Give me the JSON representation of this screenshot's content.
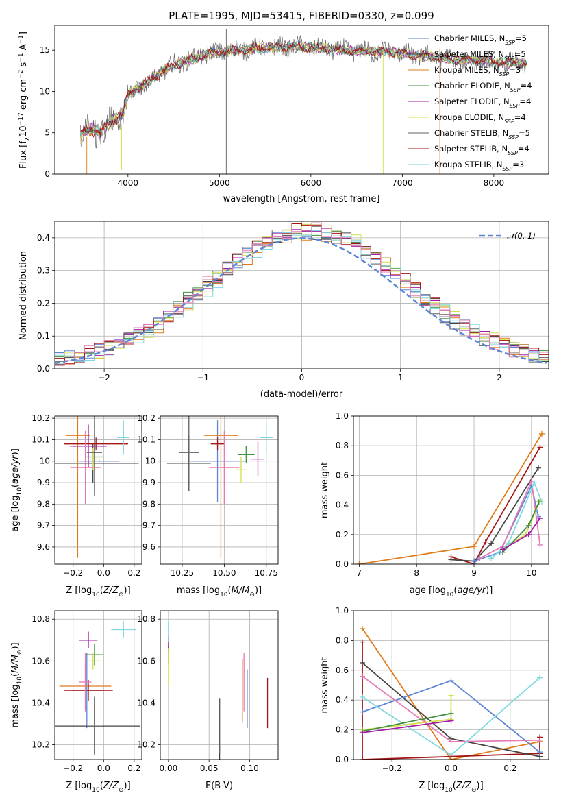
{
  "figure": {
    "title": "PLATE=1995, MJD=53415, FIBERID=0330, z=0.099"
  },
  "colors": {
    "Chabrier MILES": "#5b86d6",
    "Salpeter MILES": "#444444",
    "Kroupa MILES": "#e07b1a",
    "Chabrier ELODIE": "#3f8f3f",
    "Salpeter ELODIE": "#a61aa6",
    "Kroupa ELODIE": "#d4e04a",
    "Chabrier STELIB": "#606060",
    "Salpeter STELIB": "#a61515",
    "Kroupa STELIB": "#7fd8df",
    "pink": "#e67ab4",
    "normal": "#5b86d6"
  },
  "chart_data": [
    {
      "type": "line",
      "panel": "spectrum",
      "title": "PLATE=1995, MJD=53415, FIBERID=0330, z=0.099",
      "xlabel": "wavelength [Angstrom, rest frame]",
      "ylabel": "Flux [fλ10⁻¹⁷ erg cm⁻² s⁻¹ A⁻¹]",
      "xlim": [
        3200,
        8600
      ],
      "ylim": [
        0,
        18
      ],
      "xticks": [
        4000,
        5000,
        6000,
        7000,
        8000
      ],
      "yticks": [
        0,
        5,
        10,
        15
      ],
      "legend_position": "right",
      "legend": [
        {
          "name": "Chabrier MILES",
          "nssp": "5",
          "color": "#5b86d6"
        },
        {
          "name": "Salpeter MILES",
          "nssp": "5",
          "color": "#444444"
        },
        {
          "name": "Kroupa MILES",
          "nssp": "3",
          "color": "#e07b1a"
        },
        {
          "name": "Chabrier ELODIE",
          "nssp": "4",
          "color": "#3f8f3f"
        },
        {
          "name": "Salpeter ELODIE",
          "nssp": "4",
          "color": "#a61aa6"
        },
        {
          "name": "Kroupa ELODIE",
          "nssp": "4",
          "color": "#d4e04a"
        },
        {
          "name": "Chabrier STELIB",
          "nssp": "5",
          "color": "#606060"
        },
        {
          "name": "Salpeter STELIB",
          "nssp": "4",
          "color": "#a61515"
        },
        {
          "name": "Kroupa STELIB",
          "nssp": "3",
          "color": "#7fd8df"
        }
      ],
      "continuum": {
        "x": [
          3480,
          3520,
          3600,
          3700,
          3800,
          3900,
          3950,
          4000,
          4100,
          4200,
          4300,
          4400,
          4500,
          4600,
          4700,
          4800,
          4900,
          5000,
          5100,
          5200,
          5300,
          5400,
          5500,
          5600,
          5700,
          5800,
          5900,
          6000,
          6100,
          6200,
          6300,
          6400,
          6500,
          6600,
          6700,
          6800,
          6900,
          7000,
          7100,
          7200,
          7300,
          7400,
          7500,
          7600,
          7700,
          7800,
          7900,
          8000,
          8100,
          8200,
          8300,
          8350
        ],
        "y": [
          4.6,
          5.2,
          5.5,
          5.0,
          6.2,
          7.0,
          7.5,
          9.6,
          10.4,
          11.0,
          11.8,
          12.6,
          13.2,
          13.6,
          13.9,
          14.3,
          14.6,
          14.8,
          14.9,
          15.0,
          15.1,
          15.2,
          15.3,
          15.3,
          15.4,
          15.4,
          15.4,
          15.3,
          15.2,
          15.1,
          15.0,
          15.0,
          14.9,
          14.9,
          14.8,
          14.8,
          14.8,
          14.6,
          14.5,
          14.3,
          14.3,
          14.1,
          14.0,
          13.9,
          13.8,
          13.8,
          13.7,
          13.6,
          13.5,
          13.5,
          13.4,
          13.4
        ]
      },
      "spikes": [
        {
          "x": 3780,
          "y": [
            4.0,
            17.4
          ],
          "color": "#606060"
        },
        {
          "x": 5075,
          "y": [
            0.0,
            17.6
          ],
          "color": "#606060"
        },
        {
          "x": 6790,
          "y": [
            0.0,
            15.0
          ],
          "color": "#d4e04a"
        },
        {
          "x": 7410,
          "y": [
            0.0,
            15.2
          ],
          "color": "#e07b1a"
        },
        {
          "x": 3550,
          "y": [
            0.0,
            4.5
          ],
          "color": "#e07b1a"
        },
        {
          "x": 3930,
          "y": [
            0.5,
            6.0
          ],
          "color": "#d4e04a"
        }
      ]
    },
    {
      "type": "line",
      "panel": "residuals",
      "xlabel": "(data-model)/error",
      "ylabel": "Normed distribution",
      "xlim": [
        -2.5,
        2.5
      ],
      "ylim": [
        0,
        0.45
      ],
      "xticks": [
        -2,
        -1,
        0,
        1,
        2
      ],
      "xticklabels": [
        "−2",
        "−1",
        "0",
        "1",
        "2"
      ],
      "yticks": [
        0.0,
        0.1,
        0.2,
        0.3,
        0.4
      ],
      "yticklabels": [
        "0.0",
        "0.1",
        "0.2",
        "0.3",
        "0.4"
      ],
      "legend": "𝒩(0, 1)",
      "legend_position": "top-right",
      "series_colors": [
        "#5b86d6",
        "#444444",
        "#e07b1a",
        "#3f8f3f",
        "#a61aa6",
        "#d4e04a",
        "#606060",
        "#a61515",
        "#7fd8df",
        "#e67ab4"
      ],
      "normal_curve": {
        "mean": 0,
        "sigma": 1,
        "color": "#5b86d6"
      }
    },
    {
      "type": "scatter",
      "panel": "Z-age",
      "xlabel": "Z [log₁₀(Z/Z⊙)]",
      "ylabel": "age  [log₁₀(age/yr)]",
      "xlim": [
        -0.32,
        0.25
      ],
      "ylim": [
        9.52,
        10.21
      ],
      "xticks": [
        -0.2,
        0.0,
        0.2
      ],
      "xticklabels": [
        "−0.2",
        "0.0",
        "0.2"
      ],
      "yticks": [
        9.6,
        9.7,
        9.8,
        9.9,
        10.0,
        10.1,
        10.2
      ],
      "points": [
        {
          "x": -0.03,
          "y": 10.0,
          "xerr": 0.13,
          "yerr": 0.005,
          "color": "#5b86d6"
        },
        {
          "x": -0.07,
          "y": 9.99,
          "xerr": 0.3,
          "yerr": 0.09,
          "color": "#444444"
        },
        {
          "x": -0.17,
          "y": 10.12,
          "xerr": 0.08,
          "yerr": 0.57,
          "color": "#e07b1a"
        },
        {
          "x": -0.06,
          "y": 10.02,
          "xerr": 0.06,
          "yerr": 0.06,
          "color": "#3f8f3f"
        },
        {
          "x": -0.1,
          "y": 10.07,
          "xerr": 0.12,
          "yerr": 0.1,
          "color": "#a61aa6"
        },
        {
          "x": -0.07,
          "y": 10.01,
          "xerr": 0.05,
          "yerr": 0.05,
          "color": "#d4e04a"
        },
        {
          "x": -0.06,
          "y": 10.04,
          "xerr": 0.05,
          "yerr": 0.2,
          "color": "#606060"
        },
        {
          "x": -0.05,
          "y": 10.08,
          "xerr": 0.21,
          "yerr": 0.03,
          "color": "#a61515"
        },
        {
          "x": 0.13,
          "y": 10.11,
          "xerr": 0.04,
          "yerr": 0.08,
          "color": "#7fd8df"
        },
        {
          "x": -0.12,
          "y": 9.97,
          "xerr": 0.1,
          "yerr": 0.17,
          "color": "#e67ab4"
        }
      ]
    },
    {
      "type": "scatter",
      "panel": "mass-age",
      "xlabel": "mass [log₁₀(M/M⊙)]",
      "ylabel": "",
      "xlim": [
        10.12,
        10.82
      ],
      "ylim": [
        9.52,
        10.21
      ],
      "xticks": [
        10.25,
        10.5,
        10.75
      ],
      "xticklabels": [
        "10.25",
        "10.50",
        "10.75"
      ],
      "yticks": [
        9.6,
        9.7,
        9.8,
        9.9,
        10.0,
        10.1,
        10.2
      ],
      "points": [
        {
          "x": 10.46,
          "y": 10.0,
          "xerr": 0.16,
          "yerr": 0.19,
          "color": "#5b86d6"
        },
        {
          "x": 10.29,
          "y": 9.99,
          "xerr": 0.13,
          "yerr": 0.13,
          "color": "#444444"
        },
        {
          "x": 10.48,
          "y": 10.12,
          "xerr": 0.1,
          "yerr": 0.57,
          "color": "#e07b1a"
        },
        {
          "x": 10.63,
          "y": 10.03,
          "xerr": 0.05,
          "yerr": 0.04,
          "color": "#3f8f3f"
        },
        {
          "x": 10.7,
          "y": 10.01,
          "xerr": 0.04,
          "yerr": 0.08,
          "color": "#a61aa6"
        },
        {
          "x": 10.6,
          "y": 9.96,
          "xerr": 0.03,
          "yerr": 0.06,
          "color": "#d4e04a"
        },
        {
          "x": 10.29,
          "y": 10.04,
          "xerr": 0.06,
          "yerr": 0.18,
          "color": "#606060"
        },
        {
          "x": 10.46,
          "y": 10.08,
          "xerr": 0.04,
          "yerr": 0.03,
          "color": "#a61515"
        },
        {
          "x": 10.75,
          "y": 10.11,
          "xerr": 0.04,
          "yerr": 0.07,
          "color": "#7fd8df"
        },
        {
          "x": 10.5,
          "y": 9.97,
          "xerr": 0.09,
          "yerr": 0.17,
          "color": "#e67ab4"
        }
      ]
    },
    {
      "type": "line",
      "panel": "age-weight",
      "xlabel": "age  [log₁₀(age/yr)]",
      "ylabel": "mass weight",
      "xlim": [
        6.9,
        10.3
      ],
      "ylim": [
        0,
        1.0
      ],
      "xticks": [
        7,
        8,
        9,
        10
      ],
      "yticks": [
        0.0,
        0.2,
        0.4,
        0.6,
        0.8,
        1.0
      ],
      "yticklabels": [
        "0.0",
        "0.2",
        "0.4",
        "0.6",
        "0.8",
        "1.0"
      ],
      "series": [
        {
          "color": "#e07b1a",
          "x": [
            7.0,
            9.0,
            10.18
          ],
          "y": [
            0.0,
            0.12,
            0.88
          ]
        },
        {
          "color": "#a61515",
          "x": [
            8.6,
            9.0,
            9.2,
            10.15
          ],
          "y": [
            0.05,
            0.0,
            0.15,
            0.79
          ]
        },
        {
          "color": "#444444",
          "x": [
            8.6,
            9.0,
            9.3,
            10.12
          ],
          "y": [
            0.03,
            0.02,
            0.14,
            0.65
          ]
        },
        {
          "color": "#5b86d6",
          "x": [
            9.0,
            9.45,
            10.0,
            10.12
          ],
          "y": [
            0.02,
            0.08,
            0.53,
            0.32
          ]
        },
        {
          "color": "#e67ab4",
          "x": [
            9.1,
            9.5,
            10.0,
            10.15
          ],
          "y": [
            0.04,
            0.12,
            0.56,
            0.13
          ]
        },
        {
          "color": "#7fd8df",
          "x": [
            9.3,
            9.6,
            10.05,
            10.18
          ],
          "y": [
            0.04,
            0.14,
            0.55,
            0.42
          ]
        },
        {
          "color": "#d4e04a",
          "x": [
            9.5,
            9.9,
            10.15
          ],
          "y": [
            0.1,
            0.2,
            0.43
          ]
        },
        {
          "color": "#3f8f3f",
          "x": [
            9.5,
            9.95,
            10.13
          ],
          "y": [
            0.08,
            0.26,
            0.42
          ]
        },
        {
          "color": "#a61aa6",
          "x": [
            9.5,
            9.95,
            10.15
          ],
          "y": [
            0.1,
            0.2,
            0.31
          ]
        }
      ]
    },
    {
      "type": "scatter",
      "panel": "Z-mass",
      "xlabel": "Z [log₁₀(Z/Z⊙)]",
      "ylabel": "mass [log₁₀(M/M⊙)]",
      "xlim": [
        -0.32,
        0.25
      ],
      "ylim": [
        10.13,
        10.84
      ],
      "xticks": [
        -0.2,
        0.0,
        0.2
      ],
      "xticklabels": [
        "−0.2",
        "0.0",
        "0.2"
      ],
      "yticks": [
        10.2,
        10.4,
        10.6,
        10.8
      ],
      "yticklabels": [
        "10.2",
        "10.4",
        "10.6",
        "10.8"
      ],
      "points": [
        {
          "x": -0.11,
          "y": 10.46,
          "xerr": 0.1,
          "yerr": 0.18,
          "color": "#5b86d6"
        },
        {
          "x": -0.06,
          "y": 10.29,
          "xerr": 0.3,
          "yerr": 0.13,
          "color": "#444444"
        },
        {
          "x": -0.12,
          "y": 10.48,
          "xerr": 0.17,
          "yerr": 0.11,
          "color": "#e07b1a"
        },
        {
          "x": -0.06,
          "y": 10.63,
          "xerr": 0.06,
          "yerr": 0.05,
          "color": "#3f8f3f"
        },
        {
          "x": -0.1,
          "y": 10.7,
          "xerr": 0.06,
          "yerr": 0.04,
          "color": "#a61aa6"
        },
        {
          "x": -0.07,
          "y": 10.6,
          "xerr": 0.05,
          "yerr": 0.04,
          "color": "#d4e04a"
        },
        {
          "x": -0.06,
          "y": 10.29,
          "xerr": 0.05,
          "yerr": 0.14,
          "color": "#606060"
        },
        {
          "x": -0.1,
          "y": 10.46,
          "xerr": 0.16,
          "yerr": 0.05,
          "color": "#a61515"
        },
        {
          "x": 0.13,
          "y": 10.75,
          "xerr": 0.08,
          "yerr": 0.04,
          "color": "#7fd8df"
        },
        {
          "x": -0.12,
          "y": 10.5,
          "xerr": 0.04,
          "yerr": 0.14,
          "color": "#e67ab4"
        }
      ]
    },
    {
      "type": "scatter",
      "panel": "EBV-mass",
      "xlabel": "E(B-V)",
      "ylabel": "",
      "xlim": [
        -0.01,
        0.135
      ],
      "ylim": [
        10.13,
        10.84
      ],
      "xticks": [
        0.0,
        0.05,
        0.1
      ],
      "xticklabels": [
        "0.00",
        "0.05",
        "0.10"
      ],
      "yticks": [
        10.2,
        10.4,
        10.6,
        10.8
      ],
      "yticklabels": [
        "10.2",
        "10.4",
        "10.6",
        "10.8"
      ],
      "points": [
        {
          "x": 0.097,
          "y": 10.42,
          "yerr": 0.14,
          "color": "#5b86d6"
        },
        {
          "x": 0.063,
          "y": 10.27,
          "yerr": 0.15,
          "color": "#444444"
        },
        {
          "x": 0.091,
          "y": 10.46,
          "yerr": 0.15,
          "color": "#e07b1a"
        },
        {
          "x": 0.0,
          "y": 10.63,
          "yerr": 0.04,
          "color": "#3f8f3f"
        },
        {
          "x": 0.0,
          "y": 10.68,
          "yerr": 0.04,
          "color": "#a61aa6"
        },
        {
          "x": 0.0,
          "y": 10.57,
          "yerr": 0.09,
          "color": "#d4e04a"
        },
        {
          "x": 0.063,
          "y": 10.29,
          "yerr": 0.13,
          "color": "#606060"
        },
        {
          "x": 0.122,
          "y": 10.4,
          "yerr": 0.12,
          "color": "#a61515"
        },
        {
          "x": 0.0,
          "y": 10.74,
          "yerr": 0.05,
          "color": "#7fd8df"
        },
        {
          "x": 0.093,
          "y": 10.5,
          "yerr": 0.14,
          "color": "#e67ab4"
        }
      ]
    },
    {
      "type": "line",
      "panel": "Z-weight",
      "xlabel": "Z [log₁₀(Z/Z⊙)]",
      "ylabel": "mass weight",
      "xlim": [
        -0.33,
        0.33
      ],
      "ylim": [
        0,
        1.0
      ],
      "xticks": [
        -0.2,
        0.0,
        0.2
      ],
      "xticklabels": [
        "−0.2",
        "0.0",
        "0.2"
      ],
      "yticks": [
        0.0,
        0.2,
        0.4,
        0.6,
        0.8,
        1.0
      ],
      "yticklabels": [
        "0.0",
        "0.2",
        "0.4",
        "0.6",
        "0.8",
        "1.0"
      ],
      "series": [
        {
          "color": "#e07b1a",
          "x": [
            -0.3,
            0.0,
            0.3
          ],
          "y": [
            0.88,
            0.0,
            0.12
          ]
        },
        {
          "color": "#a61515",
          "x": [
            -0.3,
            -0.3,
            0.0,
            0.3,
            0.3
          ],
          "y": [
            0.79,
            0.0,
            0.02,
            0.04,
            0.15
          ]
        },
        {
          "color": "#444444",
          "x": [
            -0.3,
            0.0,
            0.3
          ],
          "y": [
            0.65,
            0.14,
            0.02
          ]
        },
        {
          "color": "#5b86d6",
          "x": [
            -0.3,
            0.0,
            0.3
          ],
          "y": [
            0.32,
            0.53,
            0.05
          ]
        },
        {
          "color": "#e67ab4",
          "x": [
            -0.3,
            0.0,
            0.3
          ],
          "y": [
            0.56,
            0.12,
            0.13
          ]
        },
        {
          "color": "#7fd8df",
          "x": [
            -0.3,
            0.0,
            0.3
          ],
          "y": [
            0.42,
            0.03,
            0.55
          ]
        },
        {
          "color": "#d4e04a",
          "x": [
            -0.3,
            0.0,
            0.0
          ],
          "y": [
            0.2,
            0.27,
            0.43
          ]
        },
        {
          "color": "#3f8f3f",
          "x": [
            -0.3,
            0.0
          ],
          "y": [
            0.19,
            0.31
          ]
        },
        {
          "color": "#a61aa6",
          "x": [
            -0.3,
            0.0
          ],
          "y": [
            0.18,
            0.26
          ]
        }
      ]
    }
  ]
}
